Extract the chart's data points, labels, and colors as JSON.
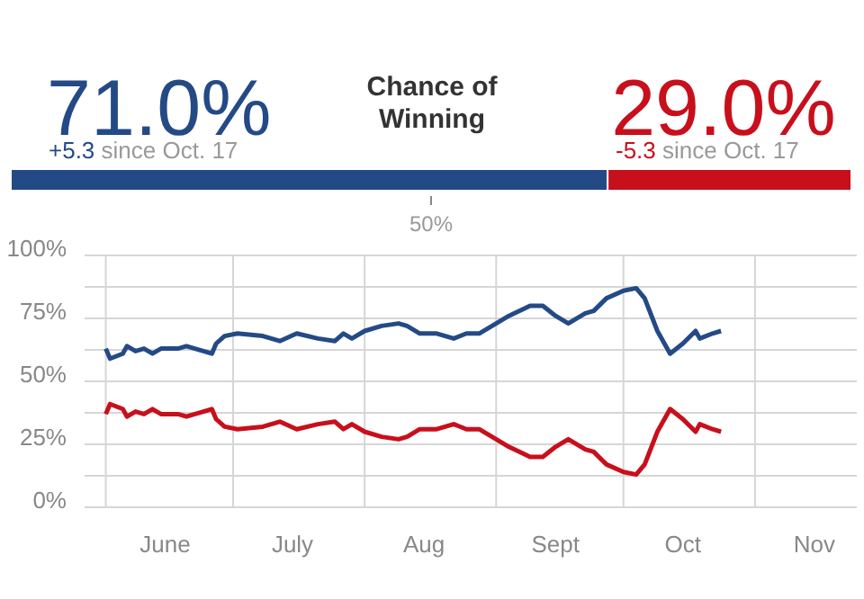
{
  "chart_data": [
    {
      "type": "bar",
      "title": "Chance of Winning",
      "orientation": "horizontal",
      "stacked": true,
      "categories": [
        null
      ],
      "series": [
        {
          "color": "#244a86",
          "values": [
            71.0
          ],
          "value_labels": [
            "71.0%"
          ]
        },
        {
          "color": "#c80f1c",
          "values": [
            29.0
          ],
          "value_labels": [
            "29.0%"
          ]
        }
      ],
      "xlim": [
        0,
        100
      ],
      "xticks": [
        {
          "value": 50,
          "label": "50%"
        }
      ],
      "annotations": [
        "+5.3 since Oct. 17",
        "-5.3 since Oct. 17"
      ]
    },
    {
      "type": "line",
      "x": [
        "--06-01",
        "--06-02",
        "--06-05",
        "--06-06",
        "--06-08",
        "--06-10",
        "--06-12",
        "--06-14",
        "--06-18",
        "--06-20",
        "--06-24",
        "--06-26",
        "--06-27",
        "--06-29",
        "--07-02",
        "--07-08",
        "--07-12",
        "--07-16",
        "--07-21",
        "--07-25",
        "--07-27",
        "--07-29",
        "--08-01",
        "--08-05",
        "--08-09",
        "--08-11",
        "--08-14",
        "--08-18",
        "--08-22",
        "--08-25",
        "--08-28",
        "--09-01",
        "--09-04",
        "--09-09",
        "--09-12",
        "--09-15",
        "--09-18",
        "--09-22",
        "--09-24",
        "--09-27",
        "--10-01",
        "--10-04",
        "--10-06",
        "--10-09",
        "--10-12",
        "--10-15",
        "--10-18",
        "--10-19",
        "--10-22",
        "--10-24"
      ],
      "series": [
        {
          "color": "#244a86",
          "values": [
            63,
            59,
            61,
            64,
            62,
            63,
            61,
            63,
            63,
            64,
            62,
            61,
            65,
            68,
            69,
            68,
            66,
            69,
            67,
            66,
            69,
            67,
            70,
            72,
            73,
            72,
            69,
            69,
            67,
            69,
            69,
            73,
            76,
            80,
            80,
            76,
            73,
            77,
            78,
            83,
            86,
            87,
            83,
            70,
            61,
            65,
            70,
            67,
            69,
            70
          ]
        },
        {
          "color": "#c80f1c",
          "values": [
            37,
            41,
            39,
            36,
            38,
            37,
            39,
            37,
            37,
            36,
            38,
            39,
            35,
            32,
            31,
            32,
            34,
            31,
            33,
            34,
            31,
            33,
            30,
            28,
            27,
            28,
            31,
            31,
            33,
            31,
            31,
            27,
            24,
            20,
            20,
            24,
            27,
            23,
            22,
            17,
            14,
            13,
            17,
            30,
            39,
            35,
            30,
            33,
            31,
            30
          ]
        }
      ],
      "xlim": [
        "--05-27",
        "--11-25"
      ],
      "xticks": [
        {
          "value": "--06-01",
          "label": null
        },
        {
          "value": "--06-15",
          "label": "June"
        },
        {
          "value": "--07-01",
          "label": null
        },
        {
          "value": "--07-15",
          "label": "July"
        },
        {
          "value": "--08-01",
          "label": null
        },
        {
          "value": "--08-15",
          "label": "Aug"
        },
        {
          "value": "--09-01",
          "label": null
        },
        {
          "value": "--09-15",
          "label": "Sept"
        },
        {
          "value": "--10-01",
          "label": null
        },
        {
          "value": "--10-15",
          "label": "Oct"
        },
        {
          "value": "--11-01",
          "label": null
        },
        {
          "value": "--11-15",
          "label": "Nov"
        }
      ],
      "ylim": [
        0,
        100
      ],
      "yticks": [
        {
          "value": 0,
          "label": "0%"
        },
        {
          "value": 12.5,
          "label": null
        },
        {
          "value": 25,
          "label": "25%"
        },
        {
          "value": 37.5,
          "label": null
        },
        {
          "value": 50,
          "label": "50%"
        },
        {
          "value": 62.5,
          "label": null
        },
        {
          "value": 75,
          "label": "75%"
        },
        {
          "value": 87.5,
          "label": null
        },
        {
          "value": 100,
          "label": "100%"
        }
      ],
      "grid": true,
      "line_style": "solid",
      "marker": "none"
    }
  ]
}
